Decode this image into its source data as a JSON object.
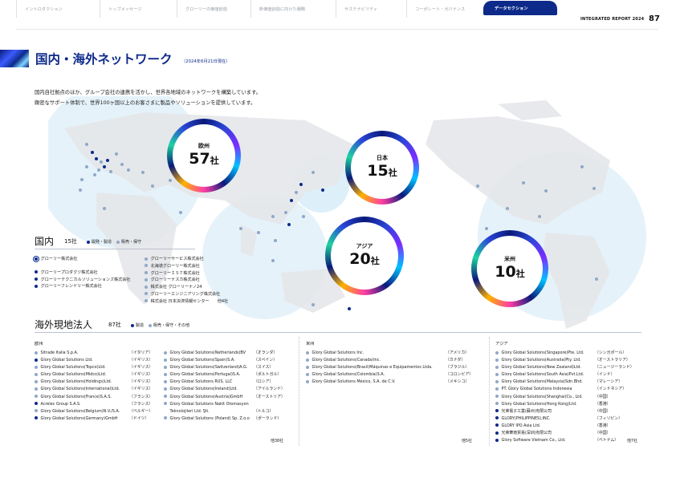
{
  "nav": {
    "items": [
      "イントロダクション",
      "トップメッセージ",
      "グローリーの価値創造",
      "新価値創造に向けた戦略",
      "サステナビリティ",
      "コーポレート・ガバナンス",
      "データセクション"
    ],
    "active_index": 6,
    "report_title": "INTEGRATED REPORT 2024",
    "page_number": "87"
  },
  "header": {
    "title": "国内・海外ネットワーク",
    "subtitle": "（2024年6月21日現在）",
    "intro_line1": "国内自社拠点のほか、グループ会社の連携を活かし、世界各地域のネットワークを構築しています。",
    "intro_line2": "緻密なサポート体制で、世界100ヶ国以上のお客さまに製品やソリューションを提供しています。"
  },
  "regions": [
    {
      "label": "欧州",
      "value": "57",
      "unit": "社"
    },
    {
      "label": "日本",
      "value": "15",
      "unit": "社"
    },
    {
      "label": "アジア",
      "value": "20",
      "unit": "社"
    },
    {
      "label": "米州",
      "value": "10",
      "unit": "社"
    }
  ],
  "domestic": {
    "title": "国内",
    "count": "15社",
    "legend_dev": "開発・製造",
    "legend_sales": "販売・保守",
    "left_items": [
      {
        "name": "グローリー株式会社",
        "type": "hq"
      },
      {
        "name": "グローリープロダクツ株式会社",
        "type": "dev"
      },
      {
        "name": "グローリーテクニカルソリューションズ株式会社",
        "type": "dev"
      },
      {
        "name": "グローリーフレンドリー株式会社",
        "type": "dev"
      }
    ],
    "right_items": [
      {
        "name": "グローリーサービス株式会社",
        "type": "sales"
      },
      {
        "name": "北海道グローリー株式会社",
        "type": "sales"
      },
      {
        "name": "グローリーＩＳＴ株式会社",
        "type": "sales"
      },
      {
        "name": "グローリーナスカ株式会社",
        "type": "sales"
      },
      {
        "name": "株式会社 グローリーナノ24",
        "type": "sales"
      },
      {
        "name": "グローリーエンジニアリング株式会社",
        "type": "sales"
      },
      {
        "name": "株式会社 日本決済情報センター　　他4社",
        "type": "sales"
      }
    ]
  },
  "overseas": {
    "title": "海外現地法人",
    "count": "87社",
    "legend_dev": "製造",
    "legend_sales": "販売・保守・その他",
    "europe": {
      "head": "欧州",
      "col1": [
        {
          "name": "Sitrade Italia S.p.A.",
          "country": "（イタリア）",
          "type": "sales"
        },
        {
          "name": "Glory Global Solutions Ltd.",
          "country": "（イギリス）",
          "type": "dev"
        },
        {
          "name": "Glory Global Solutions(Topco)Ltd.",
          "country": "（イギリス）",
          "type": "sales"
        },
        {
          "name": "Glory Global Solutions(Midco)Ltd.",
          "country": "（イギリス）",
          "type": "sales"
        },
        {
          "name": "Glory Global Solutions(Holdings)Ltd.",
          "country": "（イギリス）",
          "type": "sales"
        },
        {
          "name": "Glory Global Solutions(International)Ltd.",
          "country": "（イギリス）",
          "type": "sales"
        },
        {
          "name": "Glory Global Solutions(France)S.A.S.",
          "country": "（フランス）",
          "type": "sales"
        },
        {
          "name": "Acrelec Group S.A.S.",
          "country": "（フランス）",
          "type": "dev"
        },
        {
          "name": "Glory Global Solutions(Belgium)N.V./S.A.",
          "country": "（ベルギー）",
          "type": "sales"
        },
        {
          "name": "Glory Global Solutions(Germany)GmbH",
          "country": "（ドイツ）",
          "type": "dev"
        }
      ],
      "col2": [
        {
          "name": "Glory Global Solutions(Netherlands)BV",
          "country": "（オランダ）",
          "type": "sales"
        },
        {
          "name": "Glory Global Solutions(Spain)S.A.",
          "country": "（スペイン）",
          "type": "sales"
        },
        {
          "name": "Glory Global Solutions(Switzerland)A.G.",
          "country": "（スイス）",
          "type": "sales"
        },
        {
          "name": "Glory Global Solutions(Portugal)S.A.",
          "country": "（ポルトガル）",
          "type": "sales"
        },
        {
          "name": "Glory Global Solutions RUS, LLC",
          "country": "（ロシア）",
          "type": "sales"
        },
        {
          "name": "Glory Global Solutions(Ireland)Ltd.",
          "country": "（アイルランド）",
          "type": "sales"
        },
        {
          "name": "Glory Global Solutions(Austria)GmbH",
          "country": "（オーストリア）",
          "type": "sales"
        },
        {
          "name": "Glory Global Solutions Nakit Otomasyon",
          "country": "",
          "type": "sales"
        },
        {
          "name": "Teknolojileri Ltd. Şti.",
          "country": "（トルコ）",
          "type": "none"
        },
        {
          "name": "Glory Global Solutions (Poland) Sp. Z.o.o",
          "country": "（ポーランド）",
          "type": "sales"
        }
      ],
      "subtotal": "他38社"
    },
    "americas": {
      "head": "米州",
      "items": [
        {
          "name": "Glory Global Solutions Inc.",
          "country": "（アメリカ）",
          "type": "sales"
        },
        {
          "name": "Glory Global Solutions(Canada)Inc.",
          "country": "（カナダ）",
          "type": "sales"
        },
        {
          "name": "Glory Global Solutions(Brasil)Máquinas e Equipamentos Ltda.",
          "country": "（ブラジル）",
          "type": "sales"
        },
        {
          "name": "Glory Global Solutions(Colombia)S.A.",
          "country": "（コロンビア）",
          "type": "sales"
        },
        {
          "name": "Glory Global Solutions México, S.A. de C.V.",
          "country": "（メキシコ）",
          "type": "sales"
        }
      ],
      "subtotal": "他5社"
    },
    "asia": {
      "head": "アジア",
      "items": [
        {
          "name": "Glory Global Solutions(Singapore)Pte. Ltd.",
          "country": "（シンガポール）",
          "type": "sales"
        },
        {
          "name": "Glory Global Solutions(Australia)Pty. Ltd.",
          "country": "（オーストラリア）",
          "type": "sales"
        },
        {
          "name": "Glory Global Solutions(New Zealand)Ltd.",
          "country": "（ニュージーランド）",
          "type": "sales"
        },
        {
          "name": "Glory Global Solutions(South Asia)Pvt.Ltd.",
          "country": "（インド）",
          "type": "sales"
        },
        {
          "name": "Glory Global Solutions(Malaysia)Sdn.Bhd.",
          "country": "（マレーシア）",
          "type": "sales"
        },
        {
          "name": "PT. Glory Global Solutions Indonesia",
          "country": "（インドネシア）",
          "type": "sales"
        },
        {
          "name": "Glory Global Solutions(Shanghai)Co., Ltd.",
          "country": "（中国）",
          "type": "sales"
        },
        {
          "name": "Glory Global Solutions(Hong Kong)Ltd.",
          "country": "（香港）",
          "type": "sales"
        },
        {
          "name": "光荣電子工業(蘇州)有限公司",
          "country": "（中国）",
          "type": "dev"
        },
        {
          "name": "GLORY(PHILIPPINES),INC.",
          "country": "（フィリピン）",
          "type": "dev"
        },
        {
          "name": "GLORY IPO Asia Ltd.",
          "country": "（香港）",
          "type": "dev"
        },
        {
          "name": "光荣華南貿易(深圳)有限公司",
          "country": "（中国）",
          "type": "dev"
        },
        {
          "name": "Glory Software Vietnam Co., Ltd.",
          "country": "（ベトナム）",
          "type": "dev"
        }
      ],
      "subtotal": "他7社"
    }
  },
  "colors": {
    "brand": "#0d2a8a",
    "dev_dot": "#0d2a8a",
    "sales_dot": "#8fa8c8",
    "map_land": "#e9ebee",
    "halo": "#cfe8f5"
  }
}
